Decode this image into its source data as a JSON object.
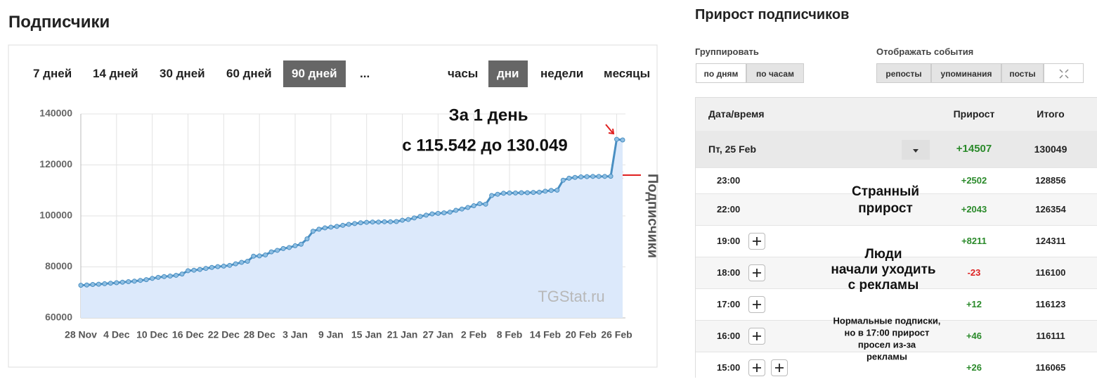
{
  "left": {
    "title": "Подписчики",
    "periods": [
      "7 дней",
      "14 дней",
      "30 дней",
      "60 дней",
      "90 дней",
      "..."
    ],
    "active_period": 4,
    "granularity": [
      "часы",
      "дни",
      "недели",
      "месяцы"
    ],
    "active_granularity": 1
  },
  "chart_data": {
    "type": "line",
    "categories": [
      "28 Nov",
      null,
      null,
      null,
      null,
      null,
      "4 Dec",
      null,
      null,
      null,
      null,
      null,
      "10 Dec",
      null,
      null,
      null,
      null,
      null,
      "16 Dec",
      null,
      null,
      null,
      null,
      null,
      "22 Dec",
      null,
      null,
      null,
      null,
      null,
      "28 Dec",
      null,
      null,
      null,
      null,
      null,
      "3 Jan",
      null,
      null,
      null,
      null,
      null,
      "9 Jan",
      null,
      null,
      null,
      null,
      null,
      "15 Jan",
      null,
      null,
      null,
      null,
      null,
      "21 Jan",
      null,
      null,
      null,
      null,
      null,
      "27 Jan",
      null,
      null,
      null,
      null,
      null,
      "2 Feb",
      null,
      null,
      null,
      null,
      null,
      "8 Feb",
      null,
      null,
      null,
      null,
      null,
      "14 Feb",
      null,
      null,
      null,
      null,
      null,
      "20 Feb",
      null,
      null,
      null,
      null,
      null,
      "26 Feb",
      null
    ],
    "series": [
      {
        "name": "Подписчики",
        "color": "#4a8fc2",
        "values": [
          72800,
          72900,
          73100,
          73200,
          73400,
          73600,
          73800,
          74000,
          74200,
          74400,
          74700,
          75000,
          75500,
          75900,
          76200,
          76400,
          76700,
          77200,
          78500,
          78700,
          79000,
          79400,
          79800,
          80100,
          80300,
          80600,
          81200,
          81800,
          82200,
          84200,
          84300,
          84700,
          85900,
          86500,
          87200,
          87600,
          88300,
          88900,
          91000,
          94000,
          94800,
          95300,
          95600,
          95900,
          96300,
          96700,
          97000,
          97300,
          97500,
          97600,
          97600,
          97700,
          97700,
          97800,
          98300,
          98600,
          99200,
          99800,
          100300,
          100800,
          101000,
          101200,
          101500,
          102200,
          102700,
          103300,
          104000,
          104800,
          104600,
          108000,
          108500,
          108900,
          109000,
          109000,
          109100,
          109100,
          109200,
          109300,
          109700,
          110000,
          110100,
          114000,
          114800,
          115100,
          115300,
          115400,
          115500,
          115500,
          115500,
          115542,
          130049,
          129800
        ]
      }
    ],
    "ylim": [
      60000,
      140000
    ],
    "yticks": [
      60000,
      80000,
      100000,
      120000,
      140000
    ],
    "grid": true,
    "annotations": [
      "За 1 день",
      "с 115.542 до 130.049"
    ],
    "watermark": "TGStat.ru"
  },
  "right": {
    "title": "Прирост подписчиков",
    "group_label": "Группировать",
    "group_buttons": [
      "по дням",
      "по часам"
    ],
    "group_active": 1,
    "events_label": "Отображать события",
    "event_buttons": [
      "репосты",
      "упоминания",
      "посты"
    ],
    "table": {
      "columns": [
        "Дата/время",
        "Прирост",
        "Итого"
      ],
      "group": {
        "date": "Пт, 25 Feb",
        "delta": "+14507",
        "total": 130049
      },
      "rows": [
        [
          "23:00",
          "+2502",
          128856
        ],
        [
          "22:00",
          "+2043",
          126354
        ],
        [
          "19:00",
          "+8211",
          124311
        ],
        [
          "18:00",
          "-23",
          116100
        ],
        [
          "17:00",
          "+12",
          116123
        ],
        [
          "16:00",
          "+46",
          116111
        ],
        [
          "15:00",
          "+26",
          116065
        ]
      ]
    },
    "notes": [
      [
        "Странный",
        "прирост"
      ],
      [
        "Люди",
        "начали уходить",
        "с рекламы"
      ],
      [
        "Нормальные подписки,",
        "но в 17:00 прирост",
        "просел из-за",
        "рекламы"
      ]
    ]
  }
}
